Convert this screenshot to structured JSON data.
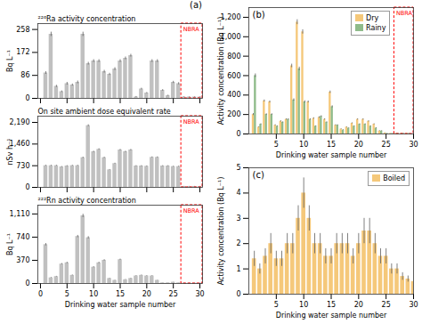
{
  "chart_data": [
    {
      "type": "bar",
      "title": "²²⁶Ra activity concentration",
      "ylabel": "Bq L⁻¹",
      "x": [
        1,
        2,
        3,
        4,
        5,
        6,
        7,
        8,
        9,
        10,
        11,
        12,
        13,
        14,
        15,
        16,
        17,
        18,
        19,
        20,
        21,
        22,
        23,
        24,
        25,
        26,
        27,
        28,
        29,
        30
      ],
      "values": [
        95,
        240,
        45,
        25,
        55,
        50,
        60,
        240,
        130,
        140,
        140,
        100,
        90,
        110,
        140,
        150,
        160,
        5,
        35,
        20,
        140,
        140,
        30,
        10,
        60,
        55,
        5,
        5,
        5,
        5
      ],
      "errors": [
        5,
        8,
        4,
        3,
        5,
        4,
        5,
        8,
        5,
        5,
        5,
        5,
        4,
        5,
        5,
        5,
        5,
        2,
        3,
        2,
        5,
        5,
        3,
        2,
        4,
        4,
        1,
        1,
        1,
        1
      ],
      "color": "#c0c0c0",
      "xlim": [
        -0.5,
        30.5
      ],
      "xticks": [
        0,
        5,
        10,
        15,
        20,
        25,
        30
      ],
      "ylim": [
        0,
        280
      ],
      "yticks": [
        0,
        86,
        172,
        258
      ],
      "tick_labels": "y",
      "annotations": [
        {
          "text": "(a)"
        },
        {
          "text": "NBRA",
          "x": 26.5,
          "color": "red"
        }
      ]
    },
    {
      "type": "bar",
      "title": "On site ambient dose equivalent rate",
      "ylabel": "nSv h⁻¹",
      "x": [
        1,
        2,
        3,
        4,
        5,
        6,
        7,
        8,
        9,
        10,
        11,
        12,
        13,
        14,
        15,
        16,
        17,
        18,
        19,
        20,
        21,
        22,
        23,
        24,
        25,
        26,
        27,
        28,
        29,
        30
      ],
      "values": [
        730,
        730,
        730,
        690,
        720,
        730,
        730,
        1000,
        2080,
        1200,
        1280,
        1000,
        590,
        800,
        1260,
        1200,
        1260,
        720,
        720,
        710,
        1010,
        1010,
        720,
        720,
        700,
        700,
        30,
        30,
        30,
        30
      ],
      "errors": [
        15,
        15,
        15,
        14,
        14,
        14,
        14,
        20,
        30,
        20,
        22,
        18,
        12,
        16,
        22,
        20,
        22,
        14,
        14,
        14,
        18,
        18,
        14,
        14,
        14,
        14,
        3,
        3,
        3,
        3
      ],
      "color": "#c0c0c0",
      "xlim": [
        -0.5,
        30.5
      ],
      "xticks": [
        0,
        5,
        10,
        15,
        20,
        25,
        30
      ],
      "ylim": [
        0,
        2400
      ],
      "yticks": [
        0,
        730,
        {
          "value": 1460,
          "label": "1,460"
        },
        {
          "value": 2190,
          "label": "2,190"
        }
      ],
      "tick_labels": "y",
      "annotations": [
        {
          "text": "NBRA",
          "x": 26.5,
          "color": "red"
        }
      ]
    },
    {
      "type": "bar",
      "title": "²²²Rn activity concentration",
      "ylabel": "Bq L⁻¹",
      "xlabel": "Drinking water sample number",
      "x": [
        1,
        2,
        3,
        4,
        5,
        6,
        7,
        8,
        9,
        10,
        11,
        12,
        13,
        14,
        15,
        16,
        17,
        18,
        19,
        20,
        21,
        22,
        23,
        24,
        25,
        26,
        27,
        28,
        29,
        30
      ],
      "values": [
        620,
        90,
        110,
        310,
        330,
        130,
        750,
        1080,
        730,
        260,
        330,
        370,
        80,
        50,
        380,
        60,
        80,
        120,
        130,
        120,
        120,
        50,
        10,
        10,
        20,
        10,
        5,
        5,
        5,
        5
      ],
      "errors": [
        18,
        5,
        5,
        10,
        10,
        6,
        18,
        25,
        18,
        8,
        10,
        10,
        4,
        3,
        10,
        3,
        4,
        5,
        5,
        5,
        5,
        3,
        1,
        1,
        2,
        1,
        1,
        1,
        1,
        1
      ],
      "color": "#c0c0c0",
      "xlim": [
        -0.5,
        30.5
      ],
      "xticks": [
        0,
        5,
        10,
        15,
        20,
        25,
        30
      ],
      "ylim": [
        0,
        1250
      ],
      "yticks": [
        0,
        370,
        740,
        {
          "value": 1110,
          "label": "1,110"
        }
      ],
      "annotations": [
        {
          "text": "NBRA",
          "x": 26.5,
          "color": "red"
        }
      ]
    },
    {
      "type": "bar",
      "xlabel": "Drinking water sample number",
      "ylabel": "Activity concentration (Bq L⁻¹)",
      "x": [
        1,
        2,
        3,
        4,
        5,
        6,
        7,
        8,
        9,
        10,
        11,
        12,
        13,
        14,
        15,
        16,
        17,
        18,
        19,
        20,
        21,
        22,
        23,
        24,
        25,
        26,
        27,
        28,
        29
      ],
      "series": [
        {
          "name": "Dry",
          "color": "#f5c87a",
          "values": [
            200,
            70,
            340,
            330,
            90,
            130,
            150,
            700,
            1150,
            1050,
            330,
            160,
            170,
            150,
            430,
            90,
            50,
            70,
            110,
            150,
            150,
            130,
            100,
            30,
            10,
            5,
            5,
            5,
            5
          ],
          "errors": [
            10,
            4,
            10,
            10,
            5,
            6,
            6,
            18,
            25,
            22,
            10,
            7,
            7,
            6,
            12,
            5,
            3,
            4,
            5,
            6,
            6,
            6,
            5,
            3,
            1,
            1,
            1,
            1,
            1
          ]
        },
        {
          "name": "Rainy",
          "color": "#8fbb8a",
          "values": [
            600,
            100,
            200,
            200,
            80,
            120,
            150,
            350,
            670,
            330,
            150,
            80,
            180,
            120,
            280,
            90,
            40,
            60,
            80,
            100,
            100,
            80,
            60,
            30,
            5,
            5,
            5,
            5,
            5
          ],
          "errors": [
            18,
            5,
            8,
            8,
            4,
            5,
            6,
            12,
            18,
            12,
            6,
            4,
            7,
            5,
            10,
            4,
            3,
            3,
            4,
            5,
            5,
            4,
            4,
            3,
            1,
            1,
            1,
            1,
            1
          ]
        }
      ],
      "xlim": [
        0,
        30
      ],
      "xticks": [
        5,
        10,
        15,
        20,
        25,
        30
      ],
      "ylim": [
        0,
        1300
      ],
      "yticks": [
        0,
        200,
        400,
        600,
        800,
        {
          "value": 1000,
          "label": "1,000"
        },
        {
          "value": 1200,
          "label": "1,200"
        }
      ],
      "legend": "upper right",
      "annotations": [
        {
          "text": "(b)"
        },
        {
          "text": "NBRA",
          "x": 26.5,
          "color": "red"
        }
      ]
    },
    {
      "type": "bar",
      "xlabel": "Drinking water sample number",
      "ylabel": "Activity concentration (Bq L⁻¹)",
      "x": [
        1,
        2,
        3,
        4,
        5,
        6,
        7,
        8,
        9,
        10,
        11,
        12,
        13,
        14,
        15,
        16,
        17,
        18,
        19,
        20,
        21,
        22,
        23,
        24,
        25,
        26,
        27,
        28,
        29,
        30
      ],
      "series": [
        {
          "name": "Boiled",
          "color": "#f5c87a",
          "values": [
            1.4,
            1.0,
            1.5,
            2.0,
            1.4,
            1.4,
            2.0,
            2.0,
            3.0,
            4.0,
            3.0,
            2.0,
            2.0,
            1.5,
            1.5,
            2.0,
            2.0,
            2.0,
            1.5,
            2.0,
            2.5,
            2.5,
            2.0,
            1.5,
            1.5,
            1.0,
            1.0,
            0.7,
            0.6,
            0.5
          ],
          "errors": [
            0.3,
            0.2,
            0.3,
            0.4,
            0.3,
            0.3,
            0.4,
            0.4,
            0.5,
            0.6,
            0.5,
            0.4,
            0.4,
            0.3,
            0.3,
            0.4,
            0.4,
            0.4,
            0.3,
            0.4,
            0.5,
            0.5,
            0.4,
            0.3,
            0.3,
            0.2,
            0.2,
            0.15,
            0.12,
            0.1
          ]
        }
      ],
      "xlim": [
        0,
        30
      ],
      "xticks": [
        5,
        10,
        15,
        20,
        25,
        30
      ],
      "ylim": [
        0,
        5
      ],
      "yticks": [
        0,
        1,
        2,
        3,
        4,
        5
      ],
      "legend": "upper right",
      "annotations": [
        {
          "text": "(c)"
        }
      ]
    }
  ]
}
